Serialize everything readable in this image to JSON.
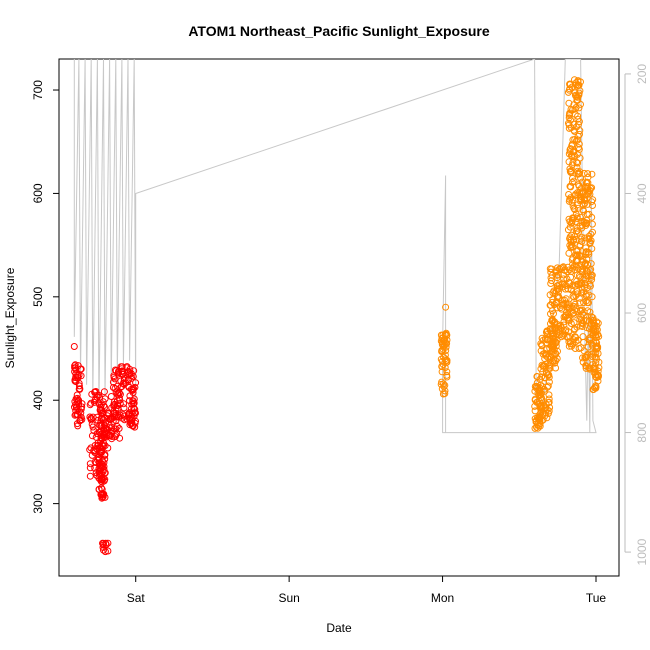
{
  "chart_data": {
    "type": "scatter",
    "title": "ATOM1 Northeast_Pacific Sunlight_Exposure",
    "xlabel": "Date",
    "ylabel": "Sunlight_Exposure",
    "x_ticks": [
      {
        "label": "Sat",
        "value": 0
      },
      {
        "label": "Sun",
        "value": 1
      },
      {
        "label": "Mon",
        "value": 2
      },
      {
        "label": "Tue",
        "value": 3
      }
    ],
    "xlim": [
      -0.5,
      3.15
    ],
    "ylim": [
      230,
      730
    ],
    "y_ticks": [
      300,
      400,
      500,
      600,
      700
    ],
    "y2lim": [
      1040,
      175
    ],
    "y2_ticks": [
      200,
      400,
      600,
      800,
      1000
    ],
    "colors": {
      "series_1": "#ff0000",
      "series_2": "#ff8c00",
      "depth_line": "#c8c8c8",
      "axis": "#000000",
      "right_axis": "#bdbdbd"
    },
    "series": [
      {
        "marker": "open-circle",
        "color": "#ff0000",
        "clusters": [
          {
            "x": [
              -0.4,
              -0.35
            ],
            "y": [
              375,
              435
            ]
          },
          {
            "x": [
              -0.3,
              -0.18
            ],
            "y": [
              325,
              410
            ]
          },
          {
            "x": [
              -0.24,
              -0.2
            ],
            "y": [
              305,
              400
            ]
          },
          {
            "x": [
              -0.22,
              -0.18
            ],
            "y": [
              253,
              262
            ]
          },
          {
            "x": [
              -0.18,
              -0.1
            ],
            "y": [
              360,
              410
            ]
          },
          {
            "x": [
              -0.15,
              -0.05
            ],
            "y": [
              380,
              435
            ]
          },
          {
            "x": [
              -0.05,
              0.0
            ],
            "y": [
              370,
              430
            ]
          }
        ],
        "outliers": [
          {
            "x": -0.4,
            "y": 452
          },
          {
            "x": -0.2,
            "y": 306
          },
          {
            "x": -0.21,
            "y": 260
          },
          {
            "x": -0.21,
            "y": 255
          }
        ]
      },
      {
        "marker": "open-circle",
        "color": "#ff8c00",
        "clusters": [
          {
            "x": [
              1.99,
              2.03
            ],
            "y": [
              405,
              465
            ]
          },
          {
            "x": [
              2.6,
              2.64
            ],
            "y": [
              372,
              425
            ]
          },
          {
            "x": [
              2.64,
              2.7
            ],
            "y": [
              380,
              470
            ]
          },
          {
            "x": [
              2.7,
              2.75
            ],
            "y": [
              430,
              530
            ]
          },
          {
            "x": [
              2.75,
              2.82
            ],
            "y": [
              460,
              530
            ]
          },
          {
            "x": [
              2.82,
              2.9
            ],
            "y": [
              450,
              710
            ]
          },
          {
            "x": [
              2.9,
              2.98
            ],
            "y": [
              430,
              620
            ]
          },
          {
            "x": [
              2.98,
              3.02
            ],
            "y": [
              410,
              480
            ]
          }
        ],
        "outliers": [
          {
            "x": 2.02,
            "y": 490
          },
          {
            "x": 2.86,
            "y": 710
          },
          {
            "x": 2.87,
            "y": 705
          },
          {
            "x": 2.88,
            "y": 690
          },
          {
            "x": 2.86,
            "y": 660
          },
          {
            "x": 2.85,
            "y": 630
          }
        ]
      }
    ],
    "depth_line": {
      "axis": "right",
      "points": [
        [
          -0.4,
          175
        ],
        [
          -0.4,
          640
        ],
        [
          -0.37,
          175
        ],
        [
          -0.36,
          700
        ],
        [
          -0.33,
          175
        ],
        [
          -0.32,
          720
        ],
        [
          -0.29,
          175
        ],
        [
          -0.28,
          740
        ],
        [
          -0.25,
          175
        ],
        [
          -0.24,
          760
        ],
        [
          -0.21,
          175
        ],
        [
          -0.2,
          740
        ],
        [
          -0.17,
          175
        ],
        [
          -0.16,
          720
        ],
        [
          -0.13,
          175
        ],
        [
          -0.12,
          700
        ],
        [
          -0.09,
          175
        ],
        [
          -0.08,
          690
        ],
        [
          -0.05,
          175
        ],
        [
          -0.04,
          680
        ],
        [
          -0.01,
          175
        ],
        [
          0.0,
          770
        ],
        [
          0.0,
          400
        ],
        [
          2.6,
          175
        ],
        [
          2.6,
          175
        ],
        [
          2.61,
          740
        ],
        [
          2.64,
          780
        ],
        [
          2.68,
          700
        ],
        [
          2.72,
          600
        ],
        [
          2.76,
          520
        ],
        [
          2.8,
          175
        ],
        [
          2.84,
          175
        ],
        [
          2.88,
          175
        ],
        [
          2.9,
          175
        ],
        [
          2.92,
          560
        ],
        [
          2.94,
          780
        ],
        [
          2.95,
          600
        ],
        [
          2.96,
          800
        ],
        [
          2.97,
          400
        ],
        [
          2.98,
          780
        ],
        [
          3.0,
          800
        ],
        [
          2.0,
          800
        ],
        [
          2.0,
          650
        ],
        [
          2.02,
          370
        ],
        [
          2.02,
          800
        ]
      ]
    }
  }
}
